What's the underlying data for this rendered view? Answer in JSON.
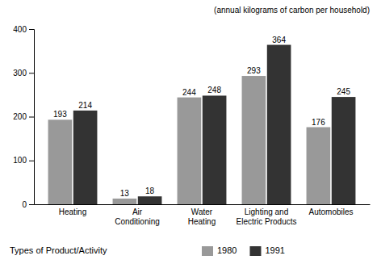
{
  "chart_data": {
    "type": "bar",
    "categories": [
      "Heating",
      "Air\nConditioning",
      "Water\nHeating",
      "Lighting and\nElectric Products",
      "Automobiles"
    ],
    "series": [
      {
        "name": "1980",
        "color": "#999999",
        "values": [
          193,
          13,
          244,
          293,
          176
        ]
      },
      {
        "name": "1991",
        "color": "#333333",
        "values": [
          214,
          18,
          248,
          364,
          245
        ]
      }
    ],
    "ylim": [
      0,
      400
    ],
    "yticks": [
      0,
      100,
      200,
      300,
      400
    ],
    "x_label": "Types of Product/Activity",
    "annotations": [
      "(annual kilograms of carbon per household)"
    ],
    "data_labels": true,
    "grid": false,
    "legend": "bottom"
  }
}
